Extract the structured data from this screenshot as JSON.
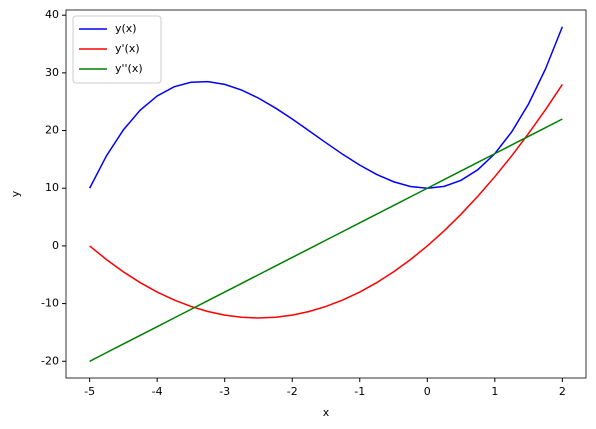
{
  "chart_data": {
    "type": "line",
    "x": [
      -5,
      -4.75,
      -4.5,
      -4.25,
      -4,
      -3.75,
      -3.5,
      -3.25,
      -3,
      -2.75,
      -2.5,
      -2.25,
      -2,
      -1.75,
      -1.5,
      -1.25,
      -1,
      -0.75,
      -0.5,
      -0.25,
      0,
      0.25,
      0.5,
      0.75,
      1,
      1.25,
      1.5,
      1.75,
      2
    ],
    "series": [
      {
        "name": "y(x)",
        "color": "#0000ff",
        "values": [
          10,
          15.64,
          20.125,
          23.55,
          26,
          27.58,
          28.375,
          28.48,
          28,
          27.02,
          25.625,
          23.92,
          22,
          19.95,
          17.875,
          15.86,
          14,
          12.39,
          11.125,
          10.3,
          10,
          10.33,
          11.375,
          13.23,
          16,
          19.77,
          24.625,
          30.67,
          38
        ]
      },
      {
        "name": "y'(x)",
        "color": "#ff0000",
        "values": [
          0,
          -2.375,
          -4.5,
          -6.375,
          -8,
          -9.375,
          -10.5,
          -11.375,
          -12,
          -12.375,
          -12.5,
          -12.375,
          -12,
          -11.375,
          -10.5,
          -9.375,
          -8,
          -6.375,
          -4.5,
          -2.375,
          0,
          2.625,
          5.5,
          8.625,
          12,
          15.625,
          19.5,
          23.625,
          28
        ]
      },
      {
        "name": "y''(x)",
        "color": "#008000",
        "values": [
          -20,
          -18.5,
          -17,
          -15.5,
          -14,
          -12.5,
          -11,
          -9.5,
          -8,
          -6.5,
          -5,
          -3.5,
          -2,
          -0.5,
          1,
          2.5,
          4,
          5.5,
          7,
          8.5,
          10,
          11.5,
          13,
          14.5,
          16,
          17.5,
          19,
          20.5,
          22
        ]
      }
    ],
    "x_label": "x",
    "y_label": "y",
    "xlim": [
      -5.35,
      2.35
    ],
    "xticks": [
      -5,
      -4,
      -3,
      -2,
      -1,
      0,
      1,
      2
    ],
    "ylim": [
      -22.9,
      40.9
    ],
    "yticks": [
      -20,
      -10,
      0,
      10,
      20,
      30,
      40
    ],
    "legend": "upper left",
    "grid": false
  }
}
